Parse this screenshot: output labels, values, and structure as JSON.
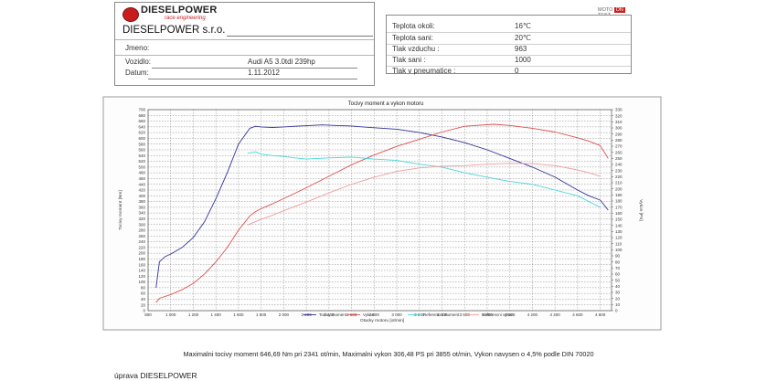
{
  "header": {
    "brand_main": "DIESELPOWER",
    "brand_sub": "race engineering",
    "company": "DIESELPOWER s.r.o."
  },
  "vehicle": {
    "name_label": "Jmeno:",
    "name_value": "",
    "vehicle_label": "Vozidlo:",
    "vehicle_value": "Audi A5 3.0tdi 239hp",
    "date_label": "Datum:",
    "date_value": "1.11.2012"
  },
  "conditions": [
    {
      "label": "Teplota okoli:",
      "value": "16℃"
    },
    {
      "label": "Teplota sani:",
      "value": "20℃"
    },
    {
      "label": "Tlak vzduchu :",
      "value": "963"
    },
    {
      "label": "Tlak sani :",
      "value": "1000"
    },
    {
      "label": "Tlak v pneumatice :",
      "value": "0"
    }
  ],
  "badge": {
    "left": "MOTO",
    "right": "DN",
    "end": "TEST"
  },
  "colors": {
    "torque": "#33339a",
    "power": "#e05050",
    "ref_torque": "#49d7dc",
    "ref_power": "#ee9f9f",
    "grid": "#8c8c8c"
  },
  "chart_data": {
    "type": "line",
    "title": "Tocivy moment a vykon motoru",
    "xlabel": "Otacky motoru [ot/min]",
    "ylabel_left": "Tocivy moment [Nm]",
    "ylabel_right": "Vykon [PS]",
    "xlim": [
      800,
      4900
    ],
    "ylim_left": [
      0,
      700
    ],
    "ylim_right": [
      0,
      330
    ],
    "x_ticks": [
      800,
      1000,
      1200,
      1400,
      1600,
      1800,
      2000,
      2200,
      2400,
      2600,
      2800,
      3000,
      3200,
      3400,
      3600,
      3800,
      4000,
      4200,
      4400,
      4600,
      4800
    ],
    "x_tick_labels": [
      "800",
      "1 000",
      "1 200",
      "1 400",
      "1 600",
      "1 800",
      "2 000",
      "2 200",
      "2 400",
      "2 600",
      "2 800",
      "3 000",
      "3 200",
      "3 400",
      "3 600",
      "3 800",
      "4 000",
      "4 200",
      "4 400",
      "4 600",
      "4 800"
    ],
    "y_left_ticks": [
      0,
      20,
      40,
      60,
      80,
      100,
      120,
      140,
      160,
      180,
      200,
      220,
      240,
      260,
      280,
      300,
      320,
      340,
      360,
      380,
      400,
      420,
      440,
      460,
      480,
      500,
      520,
      540,
      560,
      580,
      600,
      620,
      640,
      660,
      680,
      700
    ],
    "y_right_ticks": [
      0,
      10,
      20,
      30,
      40,
      50,
      60,
      70,
      80,
      90,
      100,
      110,
      120,
      130,
      140,
      150,
      160,
      170,
      180,
      190,
      200,
      210,
      220,
      230,
      240,
      250,
      260,
      270,
      280,
      290,
      300,
      310,
      320,
      330
    ],
    "grid": true,
    "legend_position": "bottom",
    "series": [
      {
        "name": "Tocivy moment",
        "axis": "left",
        "x": [
          870,
          900,
          950,
          1000,
          1100,
          1200,
          1300,
          1400,
          1500,
          1600,
          1700,
          1750,
          1800,
          1900,
          2000,
          2100,
          2200,
          2341,
          2500,
          2600,
          2700,
          2800,
          3000,
          3200,
          3400,
          3600,
          3800,
          4000,
          4200,
          4400,
          4600,
          4700,
          4800,
          4870
        ],
        "y": [
          80,
          170,
          188,
          197,
          220,
          255,
          310,
          390,
          480,
          580,
          635,
          642,
          640,
          638,
          640,
          642,
          644,
          647,
          644,
          643,
          640,
          637,
          632,
          620,
          605,
          585,
          560,
          530,
          500,
          465,
          420,
          400,
          385,
          350
        ]
      },
      {
        "name": "Vykon",
        "axis": "left",
        "x": [
          870,
          900,
          1000,
          1100,
          1200,
          1300,
          1400,
          1500,
          1600,
          1700,
          1750,
          1800,
          1900,
          2000,
          2200,
          2400,
          2600,
          2800,
          3000,
          3200,
          3400,
          3600,
          3855,
          4000,
          4200,
          4400,
          4600,
          4700,
          4800,
          4870
        ],
        "y": [
          28,
          43,
          56,
          73,
          95,
          128,
          170,
          220,
          280,
          330,
          345,
          355,
          372,
          390,
          428,
          468,
          508,
          542,
          572,
          597,
          622,
          642,
          649,
          645,
          635,
          622,
          602,
          590,
          575,
          530
        ]
      },
      {
        "name": "Referencni moment",
        "axis": "left",
        "x": [
          1680,
          1750,
          1800,
          1900,
          2000,
          2100,
          2200,
          2400,
          2600,
          2800,
          3000,
          3200,
          3400,
          3600,
          3800,
          4000,
          4200,
          4400,
          4600,
          4700,
          4800
        ],
        "y": [
          548,
          553,
          545,
          540,
          537,
          532,
          528,
          532,
          535,
          528,
          523,
          510,
          500,
          480,
          465,
          450,
          440,
          420,
          400,
          380,
          360
        ]
      },
      {
        "name": "Referencni vykon",
        "axis": "left",
        "x": [
          1680,
          1750,
          1800,
          1900,
          2000,
          2200,
          2400,
          2600,
          2800,
          3000,
          3200,
          3400,
          3600,
          3800,
          4000,
          4200,
          4400,
          4600,
          4700,
          4800
        ],
        "y": [
          298,
          310,
          318,
          332,
          348,
          378,
          410,
          440,
          465,
          485,
          497,
          503,
          505,
          510,
          513,
          512,
          505,
          490,
          480,
          468
        ]
      }
    ]
  },
  "footer": {
    "summary": "Maximalni tocivy moment 646,69 Nm pri 2341 ot/min,  Maximalni vykon 306,48 PS pri 3855 ot/min,  Vykon navysen o 4,5% podle DIN 70020",
    "note": "úprava DIESELPOWER"
  }
}
